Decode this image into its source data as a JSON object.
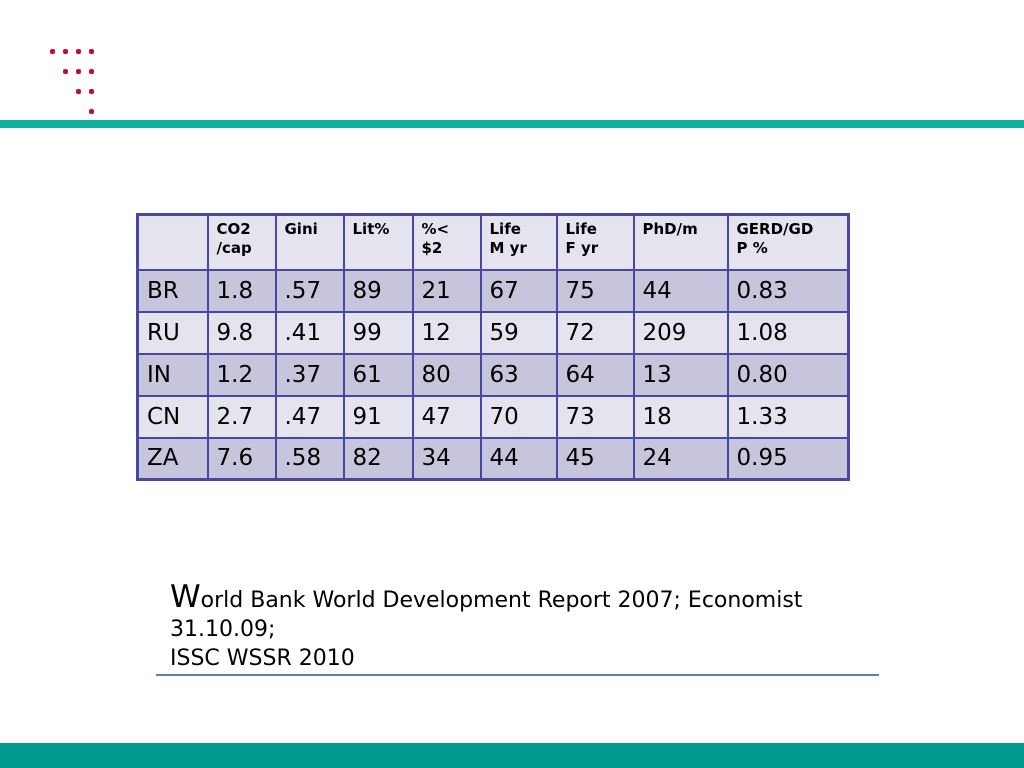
{
  "slide": {
    "colors": {
      "top_rule": "#0fb0a0",
      "bottom_bar": "#009a8e",
      "dot": "#c01031",
      "table_border": "#4747a5",
      "row_light": "#e4e3ee",
      "row_dark": "#c7c5dc",
      "citation_rule": "#4f81bd"
    },
    "table": {
      "columns": [
        "",
        "CO2\n/cap",
        "Gini",
        "Lit%",
        "%<\n$2",
        "Life\nM yr",
        "Life\nF yr",
        "PhD/m",
        "GERD/GD\nP %"
      ],
      "rows": [
        {
          "code": "BR",
          "values": [
            "1.8",
            ".57",
            "89",
            "21",
            "67",
            "75",
            "44",
            "0.83"
          ]
        },
        {
          "code": "RU",
          "values": [
            "9.8",
            ".41",
            "99",
            "12",
            "59",
            "72",
            "209",
            "1.08"
          ]
        },
        {
          "code": "IN",
          "values": [
            "1.2",
            ".37",
            "61",
            "80",
            "63",
            "64",
            "13",
            "0.80"
          ]
        },
        {
          "code": "CN",
          "values": [
            "2.7",
            ".47",
            "91",
            "47",
            "70",
            "73",
            "18",
            "1.33"
          ]
        },
        {
          "code": "ZA",
          "values": [
            "7.6",
            ".58",
            "82",
            "34",
            "44",
            "45",
            "24",
            "0.95"
          ]
        }
      ]
    },
    "citation": {
      "initial": "W",
      "lines": [
        "orld Bank World Development Report 2007; Economist",
        "31.10.09;",
        "ISSC WSSR 2010"
      ]
    }
  }
}
